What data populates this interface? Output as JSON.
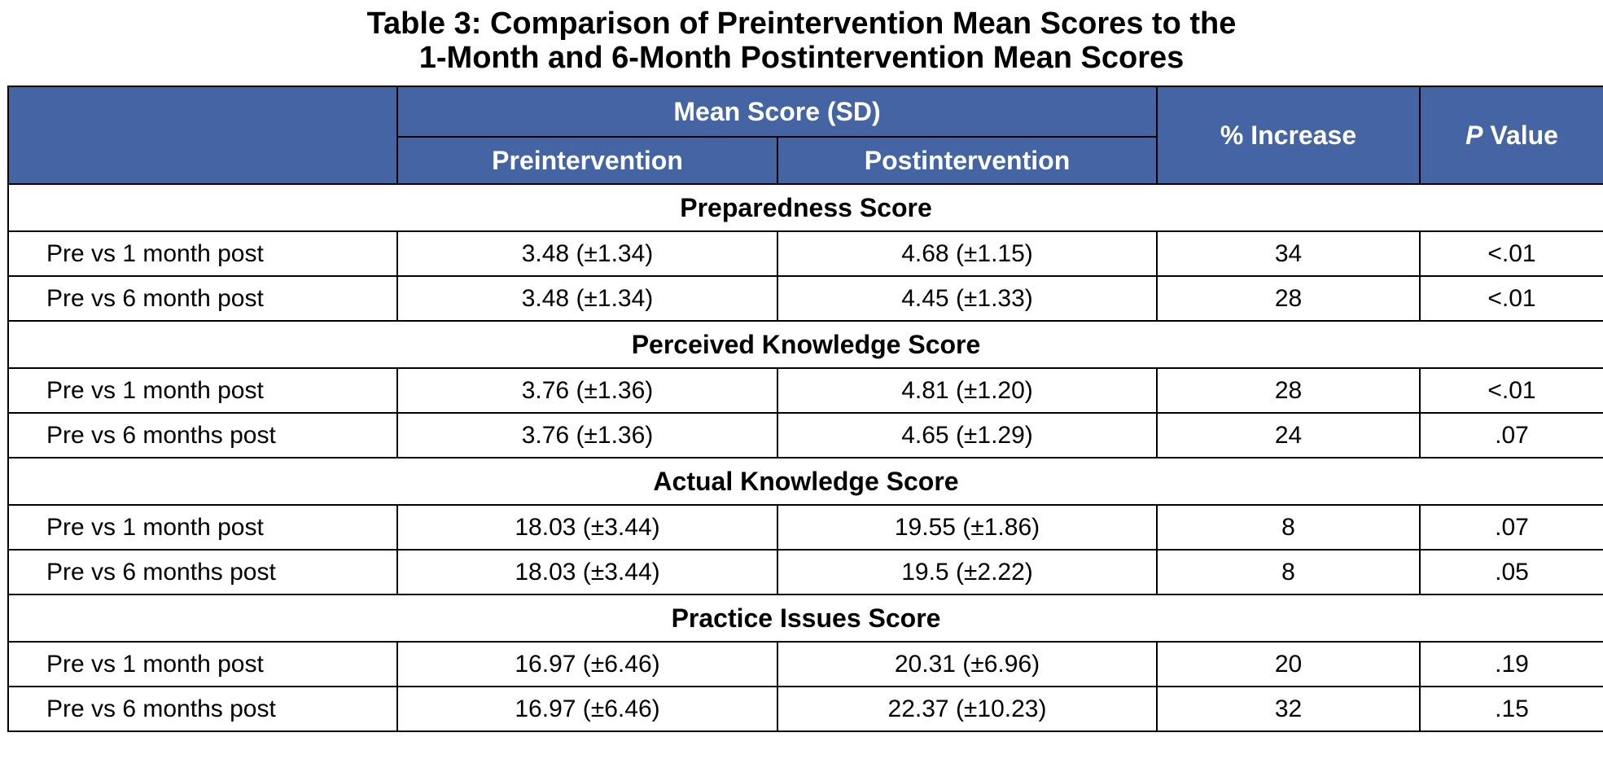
{
  "title_line1": "Table 3: Comparison of Preintervention Mean Scores to the",
  "title_line2": "1-Month and 6-Month Postintervention Mean Scores",
  "header": {
    "mean_score": "Mean Score (SD)",
    "pre": "Preintervention",
    "post": "Postintervention",
    "increase": "% Increase",
    "p_italic": "P",
    "p_rest": " Value"
  },
  "sections": [
    {
      "name": "Preparedness Score",
      "rows": [
        {
          "label": "Pre vs 1 month post",
          "pre": "3.48 (±1.34)",
          "post": "4.68 (±1.15)",
          "increase": "34",
          "p": "<.01"
        },
        {
          "label": "Pre vs 6 month post",
          "pre": "3.48 (±1.34)",
          "post": "4.45 (±1.33)",
          "increase": "28",
          "p": "<.01"
        }
      ]
    },
    {
      "name": "Perceived Knowledge Score",
      "rows": [
        {
          "label": "Pre vs 1 month post",
          "pre": "3.76 (±1.36)",
          "post": "4.81 (±1.20)",
          "increase": "28",
          "p": "<.01"
        },
        {
          "label": "Pre vs 6 months post",
          "pre": "3.76 (±1.36)",
          "post": "4.65 (±1.29)",
          "increase": "24",
          "p": ".07"
        }
      ]
    },
    {
      "name": "Actual Knowledge Score",
      "rows": [
        {
          "label": "Pre vs 1 month post",
          "pre": "18.03 (±3.44)",
          "post": "19.55 (±1.86)",
          "increase": "8",
          "p": ".07"
        },
        {
          "label": "Pre vs 6 months post",
          "pre": "18.03 (±3.44)",
          "post": "19.5 (±2.22)",
          "increase": "8",
          "p": ".05"
        }
      ]
    },
    {
      "name": "Practice Issues Score",
      "rows": [
        {
          "label": "Pre vs 1 month post",
          "pre": "16.97 (±6.46)",
          "post": "20.31 (±6.96)",
          "increase": "20",
          "p": ".19"
        },
        {
          "label": "Pre vs 6 months post",
          "pre": "16.97 (±6.46)",
          "post": "22.37 (±10.23)",
          "increase": "32",
          "p": ".15"
        }
      ]
    }
  ]
}
